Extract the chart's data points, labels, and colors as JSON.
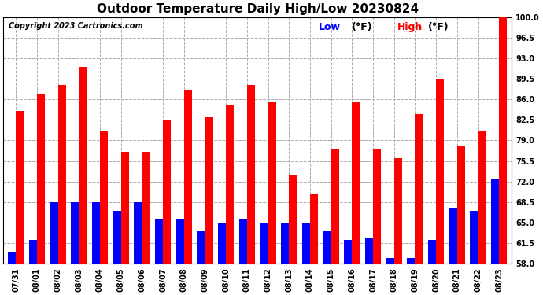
{
  "title": "Outdoor Temperature Daily High/Low 20230824",
  "copyright": "Copyright 2023 Cartronics.com",
  "legend_low": "Low",
  "legend_high": "High",
  "legend_unit": "(°F)",
  "dates": [
    "07/31",
    "08/01",
    "08/02",
    "08/03",
    "08/04",
    "08/05",
    "08/06",
    "08/07",
    "08/08",
    "08/09",
    "08/10",
    "08/11",
    "08/12",
    "08/13",
    "08/14",
    "08/15",
    "08/16",
    "08/17",
    "08/18",
    "08/19",
    "08/20",
    "08/21",
    "08/22",
    "08/23"
  ],
  "high": [
    84.0,
    87.0,
    88.5,
    91.5,
    80.5,
    77.0,
    77.0,
    82.5,
    87.5,
    83.0,
    85.0,
    88.5,
    85.5,
    73.0,
    70.0,
    77.5,
    85.5,
    77.5,
    76.0,
    83.5,
    89.5,
    78.0,
    80.5,
    100.0
  ],
  "low": [
    60.0,
    62.0,
    68.5,
    68.5,
    68.5,
    67.0,
    68.5,
    65.5,
    65.5,
    63.5,
    65.0,
    65.5,
    65.0,
    65.0,
    65.0,
    63.5,
    62.0,
    62.5,
    59.0,
    59.0,
    62.0,
    67.5,
    67.0,
    72.5
  ],
  "ylim": [
    58.0,
    100.0
  ],
  "yticks": [
    58.0,
    61.5,
    65.0,
    68.5,
    72.0,
    75.5,
    79.0,
    82.5,
    86.0,
    89.5,
    93.0,
    96.5,
    100.0
  ],
  "bar_width": 0.38,
  "high_color": "#ff0000",
  "low_color": "#0000ff",
  "bg_color": "#ffffff",
  "grid_color": "#aaaaaa",
  "title_fontsize": 11,
  "copyright_fontsize": 7,
  "tick_fontsize": 7,
  "legend_fontsize": 9
}
